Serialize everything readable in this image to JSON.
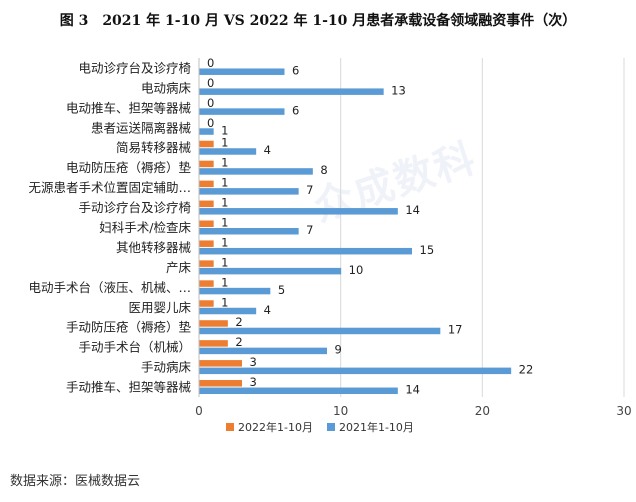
{
  "title": "图 3　2021 年 1-10 月 VS 2022 年 1-10 月患者承载设备领域融资事件（次）",
  "source": "数据来源：医械数据云",
  "watermark": "众成数科",
  "colors": {
    "s2022": "#ED7D31",
    "s2021": "#5B9BD5",
    "grid": "#D9D9D9",
    "axis": "#BFBFBF"
  },
  "chart_data": {
    "type": "bar",
    "orientation": "horizontal",
    "categories": [
      "电动诊疗台及诊疗椅",
      "电动病床",
      "电动推车、担架等器械",
      "患者运送隔离器械",
      "简易转移器械",
      "电动防压疮（褥疮）垫",
      "无源患者手术位置固定辅助…",
      "手动诊疗台及诊疗椅",
      "妇科手术/检查床",
      "其他转移器械",
      "产床",
      "电动手术台（液压、机械、…",
      "医用婴儿床",
      "手动防压疮（褥疮）垫",
      "手动手术台（机械）",
      "手动病床",
      "手动推车、担架等器械"
    ],
    "series": [
      {
        "name": "2022年1-10月",
        "values": [
          0,
          0,
          0,
          0,
          1,
          1,
          1,
          1,
          1,
          1,
          1,
          1,
          1,
          2,
          2,
          3,
          3
        ]
      },
      {
        "name": "2021年1-10月",
        "values": [
          6,
          13,
          6,
          1,
          4,
          8,
          7,
          14,
          7,
          15,
          10,
          5,
          4,
          17,
          9,
          22,
          14
        ]
      }
    ],
    "xlim": [
      0,
      30
    ],
    "xticks": [
      0,
      10,
      20,
      30
    ],
    "legend": "bottom",
    "grid": true
  }
}
